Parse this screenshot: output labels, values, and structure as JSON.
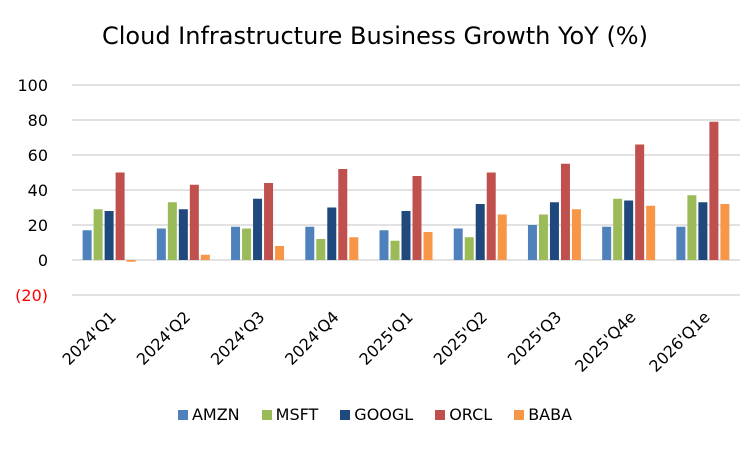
{
  "chart_data": {
    "type": "bar",
    "title": "Cloud Infrastructure Business Growth YoY (%)",
    "xlabel": "",
    "ylabel": "",
    "ylim": [
      -20,
      100
    ],
    "yticks": [
      100,
      80,
      60,
      40,
      20,
      0,
      -20
    ],
    "ytick_labels": [
      "100",
      "80",
      "60",
      "40",
      "20",
      "0",
      "(20)"
    ],
    "negative_label_color": "#ff0000",
    "grid": true,
    "legend_position": "bottom",
    "categories": [
      "2024'Q1",
      "2024'Q2",
      "2024'Q3",
      "2024'Q4",
      "2025'Q1",
      "2025'Q2",
      "2025'Q3",
      "2025'Q4e",
      "2026'Q1e"
    ],
    "series": [
      {
        "name": "AMZN",
        "color": "#4f81bd",
        "values": [
          17,
          18,
          19,
          19,
          17,
          18,
          20,
          19,
          19
        ]
      },
      {
        "name": "MSFT",
        "color": "#9bbb59",
        "values": [
          29,
          33,
          18,
          12,
          11,
          13,
          26,
          35,
          37
        ]
      },
      {
        "name": "GOOGL",
        "color": "#1f497d",
        "values": [
          28,
          29,
          35,
          30,
          28,
          32,
          33,
          34,
          33
        ]
      },
      {
        "name": "ORCL",
        "color": "#c0504d",
        "values": [
          50,
          43,
          44,
          52,
          48,
          50,
          55,
          66,
          79
        ]
      },
      {
        "name": "BABA",
        "color": "#f79646",
        "values": [
          -1,
          3,
          8,
          13,
          16,
          26,
          29,
          31,
          32
        ]
      }
    ]
  }
}
